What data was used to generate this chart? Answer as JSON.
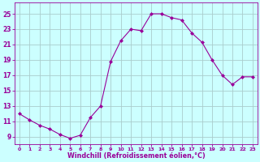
{
  "x": [
    0,
    1,
    2,
    3,
    4,
    5,
    6,
    7,
    8,
    9,
    10,
    11,
    12,
    13,
    14,
    15,
    16,
    17,
    18,
    19,
    20,
    21,
    22,
    23
  ],
  "y": [
    12.0,
    11.2,
    10.5,
    10.0,
    9.3,
    8.8,
    9.2,
    11.5,
    13.0,
    18.8,
    21.5,
    23.0,
    22.8,
    25.0,
    25.0,
    24.5,
    24.2,
    22.5,
    21.3,
    19.0,
    17.0,
    15.8,
    16.8,
    16.8
  ],
  "line_color": "#990099",
  "marker": "D",
  "marker_size": 2.0,
  "bg_color": "#ccffff",
  "grid_color": "#aacccc",
  "xlabel": "Windchill (Refroidissement éolien,°C)",
  "xlabel_color": "#990099",
  "tick_color": "#990099",
  "ylim": [
    8.0,
    26.5
  ],
  "xlim": [
    -0.5,
    23.5
  ],
  "yticks": [
    9,
    11,
    13,
    15,
    17,
    19,
    21,
    23,
    25
  ],
  "xticks": [
    0,
    1,
    2,
    3,
    4,
    5,
    6,
    7,
    8,
    9,
    10,
    11,
    12,
    13,
    14,
    15,
    16,
    17,
    18,
    19,
    20,
    21,
    22,
    23
  ],
  "figsize": [
    3.2,
    2.0
  ],
  "dpi": 100
}
